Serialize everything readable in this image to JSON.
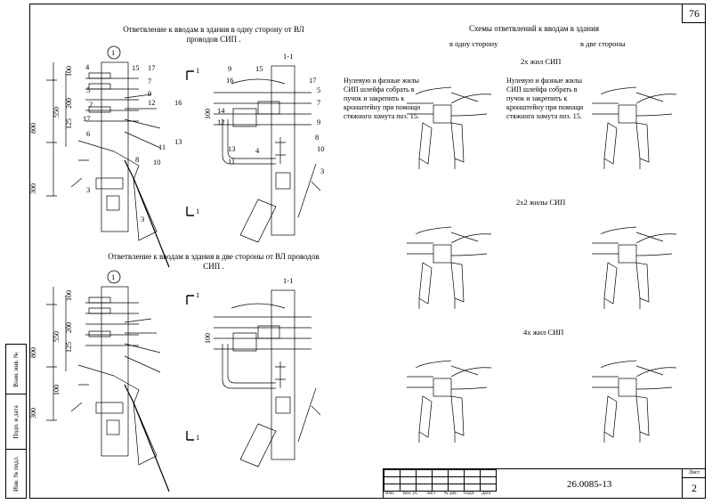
{
  "page_number": "76",
  "sheet": {
    "label": "Лист",
    "value": "2"
  },
  "document_number": "26.0085-13",
  "section_top": {
    "title": "Ответвление к вводам в здания в одну сторону от ВЛ проводов СИП .",
    "view_label": "1",
    "section_label": "1-1",
    "marker_top": "1",
    "marker_bottom": "1"
  },
  "section_bottom": {
    "title": "Ответвление к вводам в здания в две стороны от ВЛ проводов СИП .",
    "view_label": "1",
    "section_label": "1-1",
    "marker_top": "1",
    "marker_bottom": "1"
  },
  "dimensions": [
    "100",
    "550",
    "200",
    "125",
    "800",
    "300",
    "100"
  ],
  "callouts_front": [
    "4",
    "15",
    "17",
    "5",
    "7",
    "9",
    "12",
    "16",
    "17",
    "2",
    "6",
    "8",
    "11",
    "13",
    "10",
    "3",
    "3"
  ],
  "callouts_side": [
    "9",
    "15",
    "16",
    "17",
    "5",
    "7",
    "14",
    "12",
    "9",
    "13",
    "8",
    "11",
    "4",
    "10",
    "3"
  ],
  "schemes": {
    "title": "Схемы ответвлений к вводам в здания",
    "one_side": "в одну сторону",
    "two_sides": "в две стороны",
    "group1": "2х жил СИП",
    "group2": "2х2 жилы СИП",
    "group3": "4х жил СИП",
    "note": "Нулевую и фазные жилы СИП шлейфа собрать в пучок и закрепить к кронштейну при помощи стяжного хомута поз. 15."
  },
  "side_strip": [
    "Взам. инв. №",
    "Подп. и дата",
    "Инв. № подл."
  ],
  "stamp_headers": [
    "Изм.",
    "Кол. уч.",
    "Лист",
    "№ док.",
    "Подп.",
    "Дата"
  ]
}
